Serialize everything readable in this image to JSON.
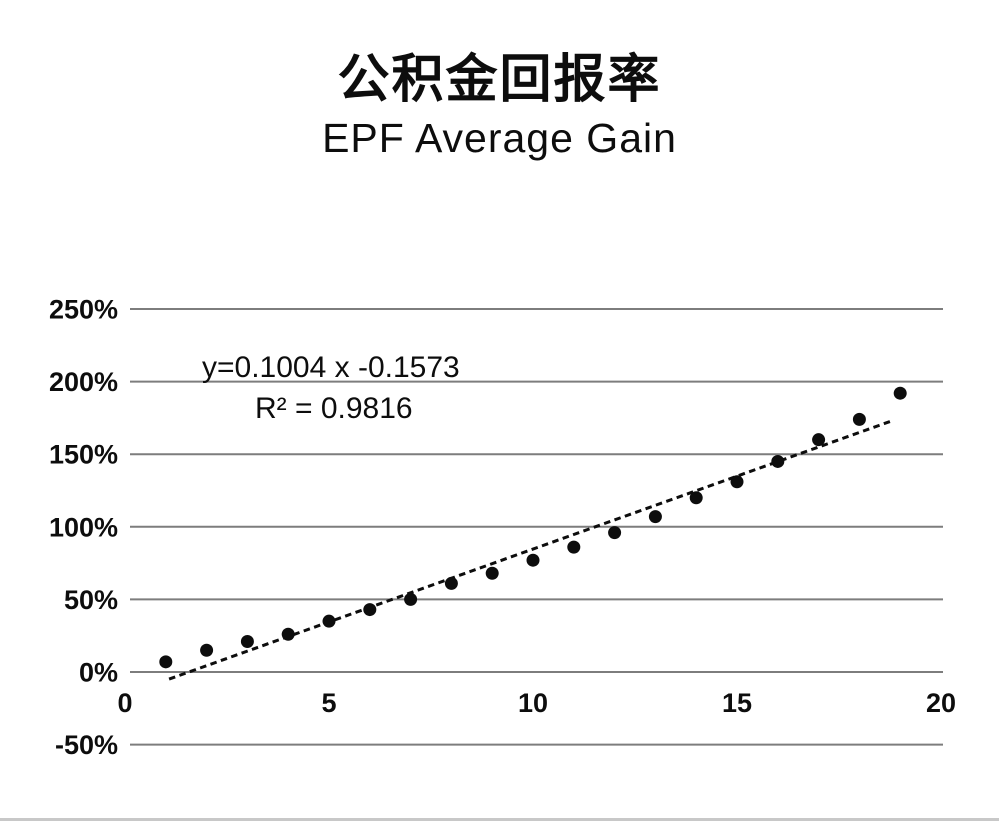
{
  "chart_data": {
    "type": "scatter",
    "title": "公积金回报率",
    "subtitle": "EPF Average Gain",
    "x": [
      1,
      2,
      3,
      4,
      5,
      6,
      7,
      8,
      9,
      10,
      11,
      12,
      13,
      14,
      15,
      16,
      17,
      18,
      19
    ],
    "values_pct": [
      7,
      15,
      21,
      26,
      35,
      43,
      50,
      61,
      68,
      77,
      86,
      96,
      107,
      120,
      131,
      145,
      160,
      174,
      192
    ],
    "xlim": [
      0,
      20
    ],
    "ylim_pct": [
      -50,
      250
    ],
    "x_tick_values": [
      0,
      5,
      10,
      15,
      20
    ],
    "x_tick_labels": [
      "0",
      "5",
      "10",
      "15",
      "20"
    ],
    "y_tick_values": [
      250,
      200,
      150,
      100,
      50,
      0,
      -50
    ],
    "y_tick_labels": [
      "250%",
      "200%",
      "150%",
      "100%",
      "50%",
      "0%",
      "-50%"
    ],
    "grid": "horizontal-only",
    "legend": "none",
    "annotations": {
      "equation": "y=0.1004 x -0.1573",
      "r_squared": "R² = 0.9816"
    },
    "trendline": {
      "style": "dashed",
      "slope": 0.1004,
      "intercept": -0.1573,
      "x_start": 1.08,
      "x_end": 18.85
    },
    "colors": {
      "point": "#0d0d0d",
      "trend": "#0d0d0d",
      "grid": "#7d7d7d",
      "text": "#0d0d0d",
      "divider": "#c8c8c8",
      "background": "#ffffff"
    }
  }
}
